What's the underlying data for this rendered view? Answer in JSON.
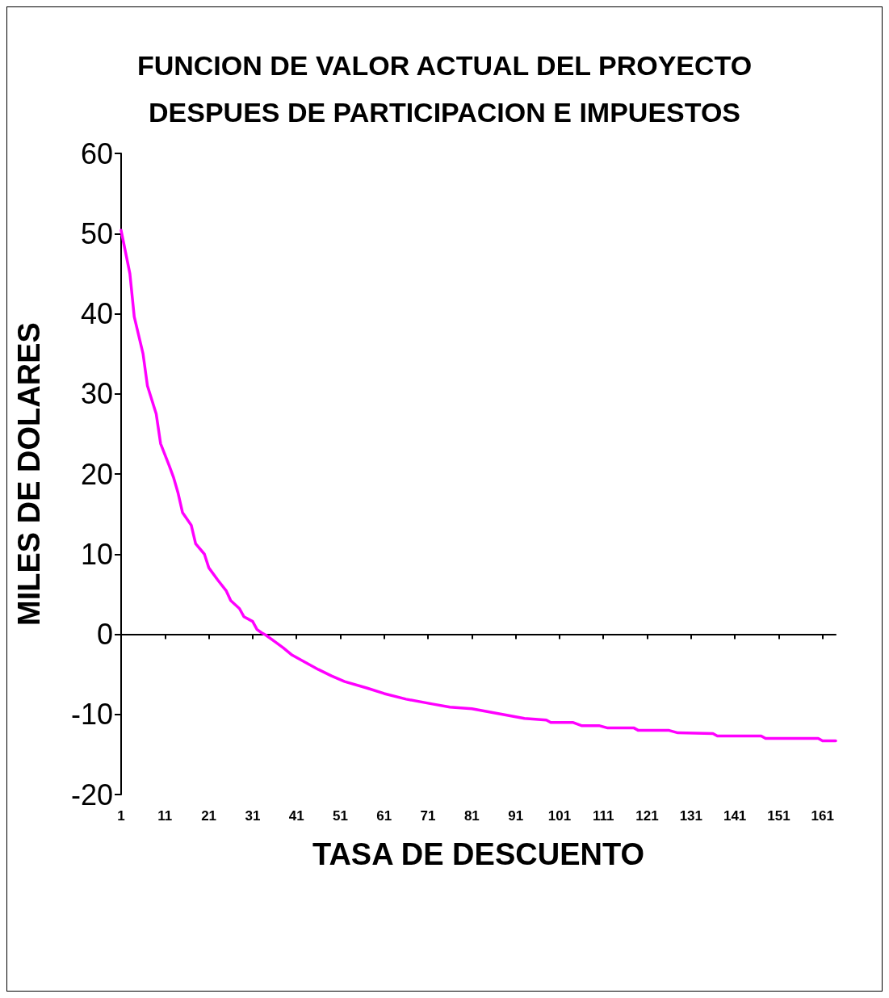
{
  "chart_data": {
    "type": "line",
    "title": "FUNCION DE VALOR ACTUAL DEL PROYECTO\nDESPUES DE PARTICIPACION E IMPUESTOS",
    "xlabel": "TASA DE DESCUENTO",
    "ylabel": "MILES DE DOLARES",
    "x": [
      1,
      3,
      4,
      6,
      7,
      9,
      10,
      12,
      13,
      14,
      15,
      17,
      18,
      20,
      21,
      23,
      25,
      26,
      28,
      29,
      31,
      32,
      33,
      34,
      36,
      38,
      40,
      43,
      46,
      49,
      52,
      57,
      61,
      66,
      72,
      76,
      81,
      86,
      93,
      98,
      99,
      104,
      106,
      110,
      112,
      118,
      119,
      126,
      128,
      136,
      137,
      147,
      148,
      160,
      161,
      164
    ],
    "series": [
      {
        "color": "#ff00ff",
        "values": [
          50.4,
          45,
          39.6,
          35,
          31,
          27.5,
          23.8,
          21,
          19.5,
          17.6,
          15.2,
          13.6,
          11.3,
          10,
          8.3,
          6.8,
          5.4,
          4.2,
          3.2,
          2.2,
          1.6,
          0.6,
          0.2,
          -0.1,
          -0.9,
          -1.7,
          -2.6,
          -3.5,
          -4.4,
          -5.2,
          -5.9,
          -6.7,
          -7.4,
          -8.1,
          -8.7,
          -9.1,
          -9.3,
          -9.8,
          -10.5,
          -10.7,
          -11,
          -11,
          -11.4,
          -11.4,
          -11.7,
          -11.7,
          -12,
          -12,
          -12.3,
          -12.4,
          -12.7,
          -12.7,
          -13,
          -13,
          -13.3,
          -13.3
        ]
      }
    ],
    "xlim": [
      1,
      164
    ],
    "xticks": [
      1,
      11,
      21,
      31,
      41,
      51,
      61,
      71,
      81,
      91,
      101,
      111,
      121,
      131,
      141,
      151,
      161
    ],
    "ylim": [
      -20,
      60
    ],
    "yticks": [
      -20,
      -10,
      0,
      10,
      20,
      30,
      40,
      50,
      60
    ],
    "marker": "none",
    "line_style": "solid"
  }
}
